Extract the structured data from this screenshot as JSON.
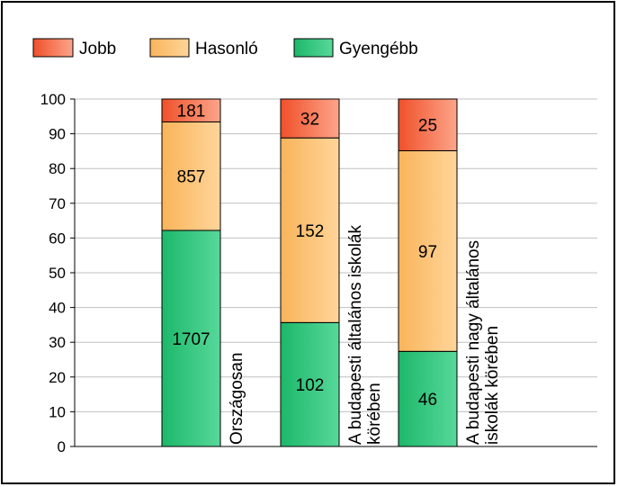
{
  "chart_data": {
    "type": "bar",
    "stacked": "percent",
    "categories": [
      "Országosan",
      "A budapesti általános iskolák körében",
      "A budapesti nagy általános iskolák körében"
    ],
    "category_label_lines": [
      [
        "Országosan"
      ],
      [
        "A budapesti általános iskolák",
        "körében"
      ],
      [
        "A budapesti nagy általános",
        "iskolák körében"
      ]
    ],
    "series": [
      {
        "name": "Gyengébb",
        "values": [
          1707,
          102,
          46
        ],
        "color_start": "#1db86a",
        "color_end": "#57d89a"
      },
      {
        "name": "Hasonló",
        "values": [
          857,
          152,
          97
        ],
        "color_start": "#f9b45a",
        "color_end": "#ffd59a"
      },
      {
        "name": "Jobb",
        "values": [
          181,
          32,
          25
        ],
        "color_start": "#f0502a",
        "color_end": "#fca58a"
      }
    ],
    "legend_order": [
      "Jobb",
      "Hasonló",
      "Gyengébb"
    ],
    "ylim": [
      0,
      100
    ],
    "yticks": [
      0,
      10,
      20,
      30,
      40,
      50,
      60,
      70,
      80,
      90,
      100
    ],
    "grid": true,
    "legend_position": "top-left",
    "title": "",
    "xlabel": "",
    "ylabel": ""
  }
}
